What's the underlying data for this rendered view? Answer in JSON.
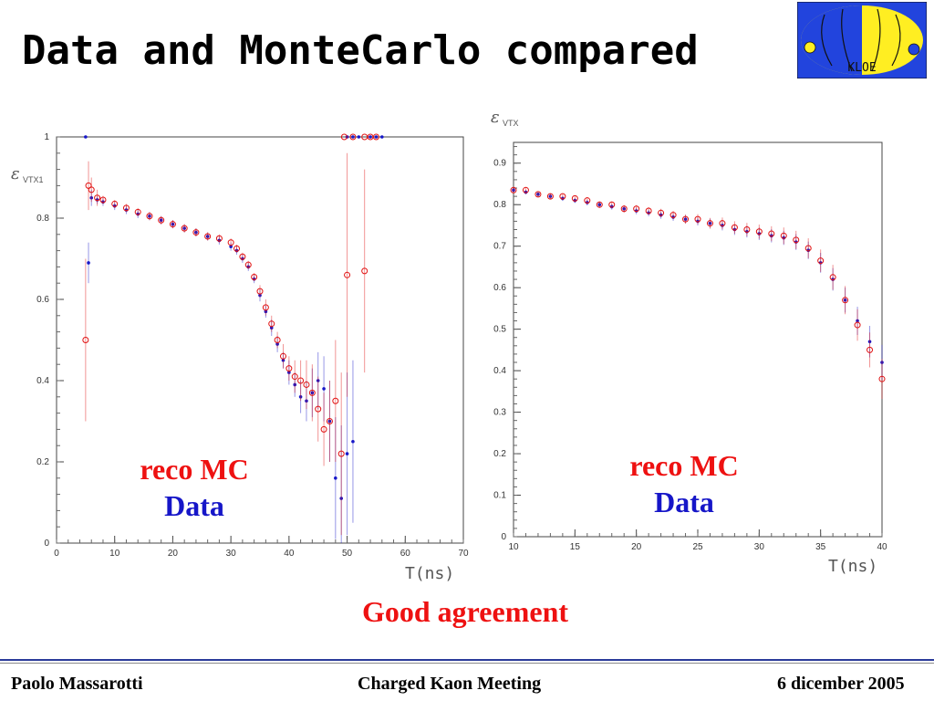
{
  "slide": {
    "title": "Data and MonteCarlo compared",
    "conclusion": "Good agreement",
    "footer": {
      "author": "Paolo Massarotti",
      "meeting": "Charged Kaon Meeting",
      "date": "6 dicember 2005"
    },
    "logo": {
      "icon": "kloe-logo-icon",
      "text": "KLOE",
      "colors": {
        "blue": "#2244dd",
        "yellow": "#ffee22"
      }
    }
  },
  "chart_data": [
    {
      "type": "scatter",
      "ylabel_symbol": "ε",
      "ylabel_sub": "VTX1",
      "xlabel": "T(ns)",
      "xlim": [
        0,
        70
      ],
      "ylim": [
        0,
        1.0
      ],
      "xticks": [
        "0",
        "10",
        "20",
        "30",
        "40",
        "50",
        "60",
        "70"
      ],
      "yticks": [
        "0",
        "0.2",
        "0.4",
        "0.6",
        "0.8",
        "1"
      ],
      "grid": false,
      "legend": {
        "placement": "bottom-left",
        "entries": [
          {
            "name": "reco MC",
            "color": "#e11111"
          },
          {
            "name": "Data",
            "color": "#1616c8"
          }
        ]
      },
      "series": [
        {
          "name": "Data",
          "color": "#1616c8",
          "marker": "dot",
          "x": [
            5,
            5.5,
            6,
            7,
            8,
            10,
            12,
            14,
            16,
            18,
            20,
            22,
            24,
            26,
            28,
            30,
            31,
            32,
            33,
            34,
            35,
            36,
            37,
            38,
            39,
            40,
            41,
            42,
            43,
            44,
            45,
            46,
            47,
            48,
            49,
            50,
            51
          ],
          "y": [
            1.0,
            0.69,
            0.85,
            0.845,
            0.84,
            0.83,
            0.82,
            0.81,
            0.805,
            0.795,
            0.785,
            0.775,
            0.765,
            0.755,
            0.745,
            0.73,
            0.72,
            0.7,
            0.68,
            0.65,
            0.61,
            0.57,
            0.53,
            0.49,
            0.45,
            0.42,
            0.39,
            0.36,
            0.35,
            0.37,
            0.4,
            0.38,
            0.3,
            0.16,
            0.11,
            0.22,
            0.25
          ],
          "err": [
            0,
            0.05,
            0.02,
            0.01,
            0.01,
            0.01,
            0.01,
            0.01,
            0.01,
            0.01,
            0.01,
            0.01,
            0.01,
            0.01,
            0.01,
            0.01,
            0.01,
            0.01,
            0.01,
            0.01,
            0.015,
            0.015,
            0.02,
            0.02,
            0.02,
            0.03,
            0.03,
            0.04,
            0.05,
            0.06,
            0.07,
            0.08,
            0.1,
            0.15,
            0.18,
            0.2,
            0.2
          ]
        },
        {
          "name": "reco MC",
          "color": "#e11111",
          "marker": "circle",
          "x": [
            5,
            5.5,
            6,
            7,
            8,
            10,
            12,
            14,
            16,
            18,
            20,
            22,
            24,
            26,
            28,
            30,
            31,
            32,
            33,
            34,
            35,
            36,
            37,
            38,
            39,
            40,
            41,
            42,
            43,
            44,
            45,
            46,
            47,
            48,
            49,
            50,
            53
          ],
          "y": [
            0.5,
            0.88,
            0.87,
            0.85,
            0.845,
            0.835,
            0.825,
            0.815,
            0.805,
            0.795,
            0.785,
            0.775,
            0.765,
            0.755,
            0.75,
            0.74,
            0.725,
            0.705,
            0.685,
            0.655,
            0.62,
            0.58,
            0.54,
            0.5,
            0.46,
            0.43,
            0.41,
            0.4,
            0.39,
            0.37,
            0.33,
            0.28,
            0.3,
            0.35,
            0.22,
            0.66,
            0.67
          ],
          "err": [
            0.2,
            0.06,
            0.03,
            0.02,
            0.01,
            0.01,
            0.01,
            0.01,
            0.01,
            0.01,
            0.01,
            0.01,
            0.01,
            0.01,
            0.01,
            0.01,
            0.01,
            0.01,
            0.01,
            0.01,
            0.015,
            0.02,
            0.02,
            0.02,
            0.03,
            0.03,
            0.04,
            0.05,
            0.06,
            0.07,
            0.08,
            0.09,
            0.1,
            0.15,
            0.2,
            0.3,
            0.25
          ]
        },
        {
          "name": "Data",
          "color": "#1616c8",
          "marker": "dot",
          "x": [
            50,
            51,
            52,
            54,
            55,
            56
          ],
          "y": [
            1.0,
            1.0,
            1.0,
            1.0,
            1.0,
            1.0
          ],
          "err": [
            0,
            0,
            0,
            0,
            0,
            0
          ]
        },
        {
          "name": "reco MC",
          "color": "#e11111",
          "marker": "circle",
          "x": [
            49.5,
            51,
            53,
            54,
            55
          ],
          "y": [
            1.0,
            1.0,
            1.0,
            1.0,
            1.0
          ],
          "err": [
            0,
            0,
            0,
            0,
            0
          ]
        }
      ]
    },
    {
      "type": "scatter",
      "ylabel_symbol": "ε",
      "ylabel_sub": "VTX",
      "xlabel": "T(ns)",
      "xlim": [
        10,
        40
      ],
      "ylim": [
        0,
        0.95
      ],
      "xticks": [
        "10",
        "15",
        "20",
        "25",
        "30",
        "35",
        "40"
      ],
      "yticks": [
        "0",
        "0.1",
        "0.2",
        "0.3",
        "0.4",
        "0.5",
        "0.6",
        "0.7",
        "0.8",
        "0.9"
      ],
      "grid": false,
      "legend": {
        "placement": "bottom-right",
        "entries": [
          {
            "name": "reco MC",
            "color": "#e11111"
          },
          {
            "name": "Data",
            "color": "#1616c8"
          }
        ]
      },
      "series": [
        {
          "name": "Data",
          "color": "#1616c8",
          "marker": "dot",
          "x": [
            10,
            11,
            12,
            13,
            14,
            15,
            16,
            17,
            18,
            19,
            20,
            21,
            22,
            23,
            24,
            25,
            26,
            27,
            28,
            29,
            30,
            31,
            32,
            33,
            34,
            35,
            36,
            37,
            38,
            39,
            40
          ],
          "y": [
            0.835,
            0.83,
            0.825,
            0.82,
            0.815,
            0.81,
            0.805,
            0.8,
            0.795,
            0.79,
            0.785,
            0.78,
            0.775,
            0.77,
            0.765,
            0.76,
            0.755,
            0.75,
            0.74,
            0.735,
            0.73,
            0.725,
            0.72,
            0.71,
            0.69,
            0.66,
            0.62,
            0.57,
            0.52,
            0.47,
            0.42
          ],
          "err": [
            0.005,
            0.005,
            0.005,
            0.006,
            0.006,
            0.006,
            0.007,
            0.007,
            0.007,
            0.008,
            0.008,
            0.008,
            0.009,
            0.009,
            0.01,
            0.01,
            0.011,
            0.012,
            0.013,
            0.014,
            0.015,
            0.016,
            0.017,
            0.019,
            0.021,
            0.024,
            0.027,
            0.03,
            0.034,
            0.038,
            0.042
          ]
        },
        {
          "name": "reco MC",
          "color": "#e11111",
          "marker": "circle",
          "x": [
            10,
            11,
            12,
            13,
            14,
            15,
            16,
            17,
            18,
            19,
            20,
            21,
            22,
            23,
            24,
            25,
            26,
            27,
            28,
            29,
            30,
            31,
            32,
            33,
            34,
            35,
            36,
            37,
            38,
            39,
            40
          ],
          "y": [
            0.835,
            0.835,
            0.825,
            0.82,
            0.82,
            0.815,
            0.81,
            0.8,
            0.8,
            0.79,
            0.79,
            0.785,
            0.78,
            0.775,
            0.765,
            0.765,
            0.755,
            0.755,
            0.745,
            0.74,
            0.735,
            0.73,
            0.725,
            0.715,
            0.695,
            0.665,
            0.625,
            0.57,
            0.51,
            0.45,
            0.38
          ],
          "err": [
            0.006,
            0.006,
            0.006,
            0.007,
            0.007,
            0.007,
            0.008,
            0.008,
            0.008,
            0.009,
            0.009,
            0.009,
            0.01,
            0.01,
            0.011,
            0.012,
            0.013,
            0.014,
            0.015,
            0.016,
            0.017,
            0.018,
            0.02,
            0.022,
            0.024,
            0.027,
            0.03,
            0.034,
            0.038,
            0.042,
            0.048
          ]
        }
      ]
    }
  ]
}
